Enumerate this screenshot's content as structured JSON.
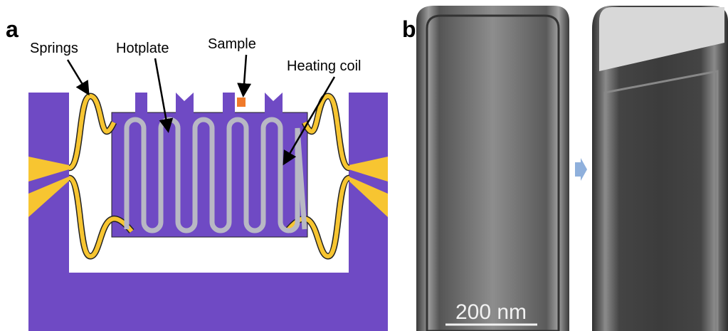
{
  "panel_a": {
    "label": "a",
    "annotations": [
      "Springs",
      "Hotplate",
      "Sample",
      "Heating coil"
    ]
  },
  "panel_b": {
    "label": "b",
    "scale_bar": "200 nm"
  }
}
